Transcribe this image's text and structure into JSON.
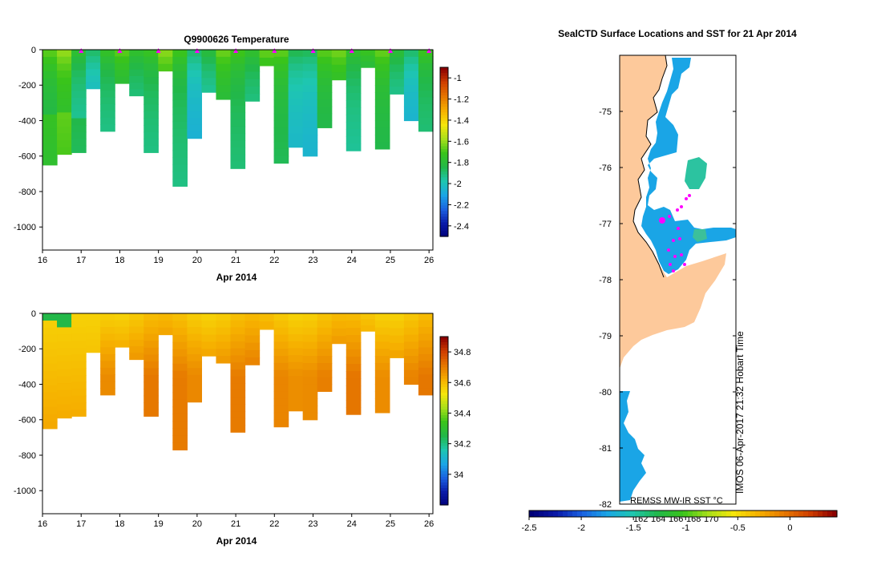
{
  "colors": {
    "land": "#fdc99b",
    "ocean": "#1aa5e6",
    "axis": "#000000",
    "marker": "#ff00ff"
  },
  "chart_data": [
    {
      "id": "temperature",
      "type": "heatmap",
      "title": "Q9900626  Temperature",
      "xlabel": "Apr 2014",
      "ylabel": "",
      "xlim": [
        16,
        26.1
      ],
      "ylim": [
        -1130,
        0
      ],
      "x_ticks": [
        16,
        17,
        18,
        19,
        20,
        21,
        22,
        23,
        24,
        25,
        26
      ],
      "y_ticks": [
        0,
        -200,
        -400,
        -600,
        -800,
        -1000
      ],
      "colorbar": {
        "min": -2.5,
        "max": -0.9,
        "ticks": [
          -1,
          -1.2,
          -1.4,
          -1.6,
          -1.8,
          -2,
          -2.2,
          -2.4
        ]
      },
      "surface_markers_x": [
        17,
        18,
        19,
        20,
        21,
        22,
        23,
        24,
        25,
        26
      ],
      "profile_bottom_depth": [
        650,
        590,
        580,
        220,
        460,
        190,
        260,
        580,
        120,
        770,
        500,
        240,
        280,
        670,
        290,
        90,
        640,
        550,
        600,
        440,
        170,
        570,
        100,
        560,
        250,
        400,
        460
      ]
    },
    {
      "id": "salinity",
      "type": "heatmap",
      "title": "",
      "xlabel": "Apr 2014",
      "ylabel": "",
      "xlim": [
        16,
        26.1
      ],
      "ylim": [
        -1130,
        0
      ],
      "x_ticks": [
        16,
        17,
        18,
        19,
        20,
        21,
        22,
        23,
        24,
        25,
        26
      ],
      "y_ticks": [
        0,
        -200,
        -400,
        -600,
        -800,
        -1000
      ],
      "colorbar": {
        "min": 33.8,
        "max": 34.9,
        "ticks": [
          34.8,
          34.6,
          34.4,
          34.2,
          34
        ]
      },
      "profile_bottom_depth": [
        650,
        590,
        580,
        220,
        460,
        190,
        260,
        580,
        120,
        770,
        500,
        240,
        280,
        670,
        290,
        90,
        640,
        550,
        600,
        440,
        170,
        570,
        100,
        560,
        250,
        400,
        460
      ]
    },
    {
      "id": "sst-map",
      "type": "map",
      "title": "SealCTD Surface Locations and SST for 21 Apr 2014",
      "ylim": [
        -82,
        -74
      ],
      "y_ticks": [
        -75,
        -76,
        -77,
        -78,
        -79,
        -80,
        -81,
        -82
      ],
      "x_ticks_inside": [
        "162",
        "164",
        "166",
        "168",
        "170"
      ],
      "source_label": "REMSS MW-IR SST °C",
      "side_label": "IMOS 06-Apr-2017 21:32 Hobart Time",
      "colorbar": {
        "min": -2.5,
        "max": 0.45,
        "ticks": [
          -2.5,
          -2,
          -1.5,
          -1,
          -0.5,
          0
        ]
      }
    }
  ]
}
